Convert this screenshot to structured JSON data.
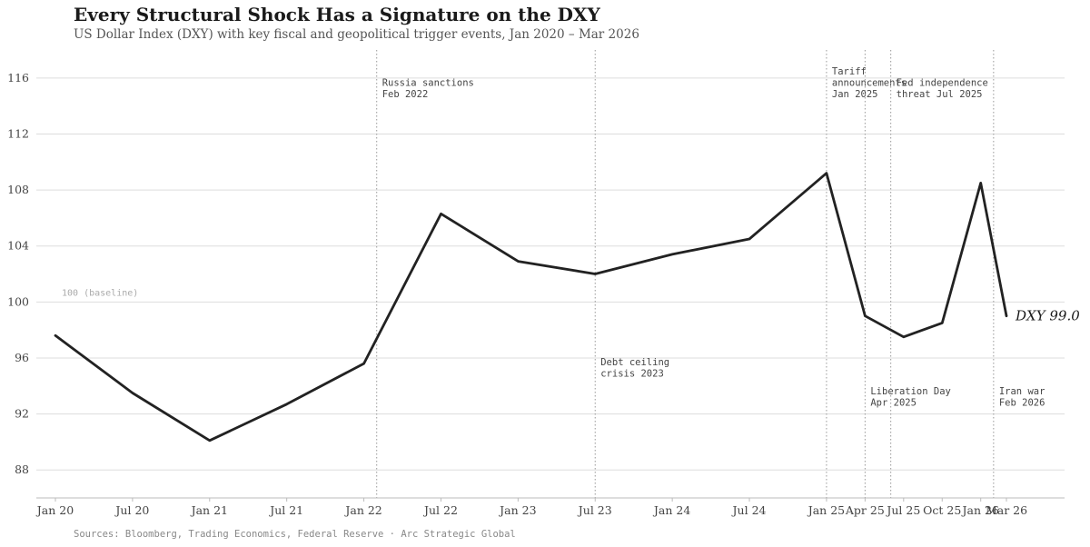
{
  "header": {
    "title": "Every Structural Shock Has a Signature on the DXY",
    "subtitle": "US Dollar Index (DXY) with key fiscal and geopolitical trigger events, Jan 2020 – Mar 2026"
  },
  "footer": {
    "source": "Sources: Bloomberg, Trading Economics, Federal Reserve · Arc Strategic Global"
  },
  "colors": {
    "line": "#222222",
    "grid": "#dddddd",
    "event_line": "#999999",
    "axis_text": "#444444"
  },
  "chart_data": {
    "type": "line",
    "title": "Every Structural Shock Has a Signature on the DXY",
    "subtitle": "US Dollar Index (DXY) with key fiscal and geopolitical trigger events, Jan 2020 – Mar 2026",
    "x_ticks": [
      "Jan 20",
      "Jul 20",
      "Jan 21",
      "Jul 21",
      "Jan 22",
      "Jul 22",
      "Jan 23",
      "Jul 23",
      "Jan 24",
      "Jul 24",
      "Jan 25",
      "Apr 25",
      "Jul 25",
      "Oct 25",
      "Jan 26",
      "Mar 26"
    ],
    "y_ticks": [
      88,
      92,
      96,
      100,
      104,
      108,
      112,
      116
    ],
    "ylim": [
      86,
      118
    ],
    "grid": true,
    "series": [
      {
        "name": "DXY",
        "x": [
          "Jan 20",
          "Jul 20",
          "Jan 21",
          "Jul 21",
          "Jan 22",
          "Jul 22",
          "Jan 23",
          "Jul 23",
          "Jan 24",
          "Jul 24",
          "Jan 25",
          "Apr 25",
          "Jul 25",
          "Oct 25",
          "Jan 26",
          "Mar 26"
        ],
        "values": [
          97.6,
          93.5,
          90.1,
          92.7,
          95.6,
          106.3,
          102.9,
          102.0,
          103.4,
          104.5,
          109.2,
          99.0,
          97.5,
          98.5,
          108.5,
          99.0
        ]
      }
    ],
    "end_label": {
      "series": "DXY",
      "value": "99.0"
    },
    "baseline": {
      "value": 100,
      "label": "100 (baseline)"
    },
    "events": [
      {
        "x": "Feb 22",
        "lines": [
          "Russia sanctions",
          "Feb 2022"
        ],
        "label_position": "top"
      },
      {
        "x": "Jul 23",
        "lines": [
          "Debt ceiling",
          "crisis 2023"
        ],
        "label_position": "middle"
      },
      {
        "x": "Jan 25",
        "lines": [
          "Tariff",
          "announcements",
          "Jan 2025"
        ],
        "label_position": "top"
      },
      {
        "x": "Apr 25",
        "lines": [
          "Liberation Day",
          "Apr 2025"
        ],
        "label_position": "lower"
      },
      {
        "x": "Jun 25",
        "lines": [
          "Fed independence",
          "threat Jul 2025"
        ],
        "label_position": "top"
      },
      {
        "x": "Feb 26",
        "lines": [
          "Iran war",
          "Feb 2026"
        ],
        "label_position": "lower"
      }
    ]
  }
}
